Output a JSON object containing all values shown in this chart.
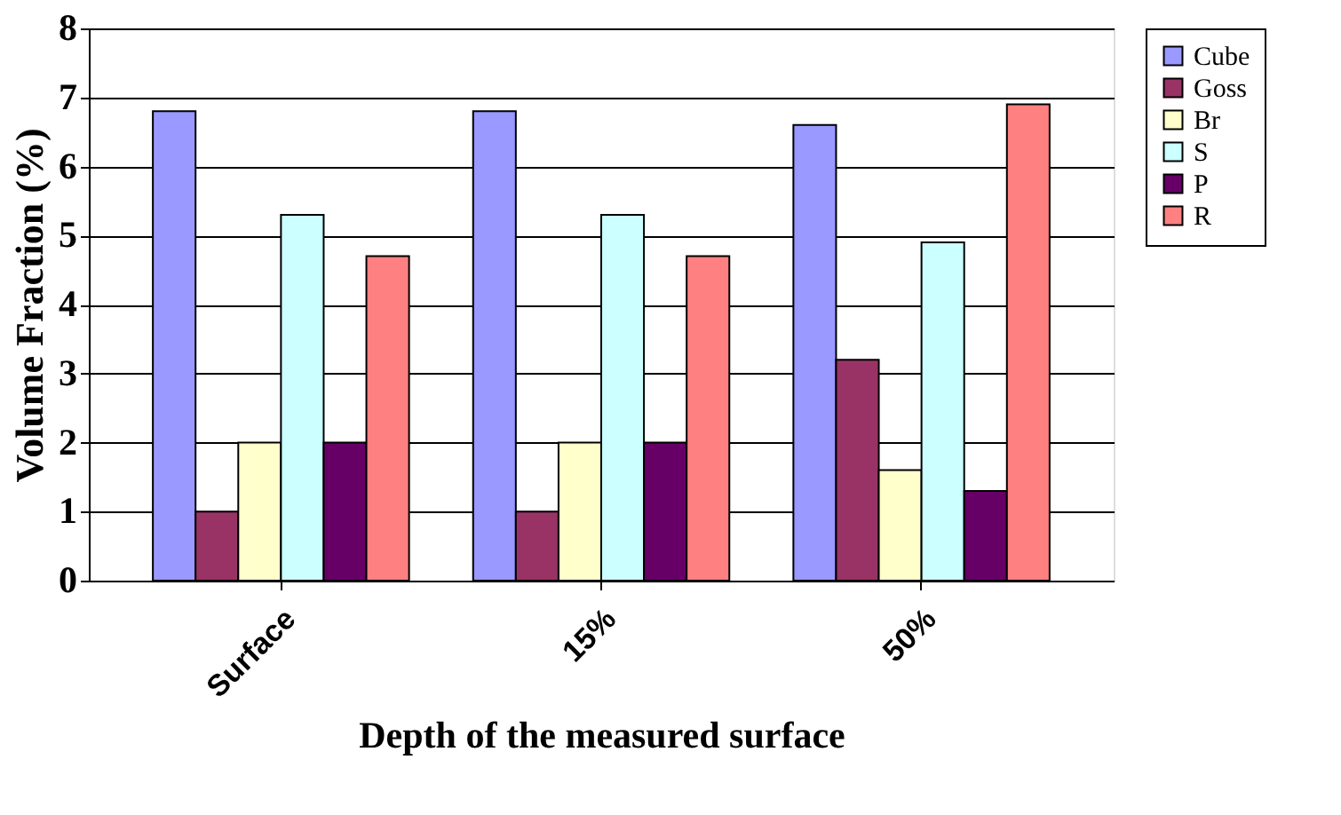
{
  "chart_data": {
    "type": "bar",
    "xlabel": "Depth of the measured surface",
    "ylabel": "Volume Fraction (%)",
    "categories": [
      "Surface",
      "15%",
      "50%"
    ],
    "series": [
      {
        "name": "Cube",
        "color": "#9999ff",
        "values": [
          6.8,
          6.8,
          6.6
        ]
      },
      {
        "name": "Goss",
        "color": "#993366",
        "values": [
          1,
          1,
          3.2
        ]
      },
      {
        "name": "Br",
        "color": "#ffffcc",
        "values": [
          2,
          2,
          1.6
        ]
      },
      {
        "name": "S",
        "color": "#ccffff",
        "values": [
          5.3,
          5.3,
          4.9
        ]
      },
      {
        "name": "P",
        "color": "#660066",
        "values": [
          2,
          2,
          1.3
        ]
      },
      {
        "name": "R",
        "color": "#ff8080",
        "values": [
          4.7,
          4.7,
          6.9
        ]
      }
    ],
    "ylim": [
      0,
      8
    ],
    "yticks": [
      0,
      1,
      2,
      3,
      4,
      5,
      6,
      7,
      8
    ],
    "grid": "y",
    "legend": "right"
  }
}
